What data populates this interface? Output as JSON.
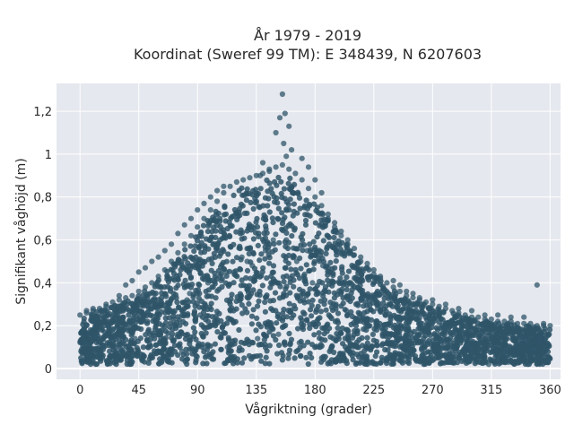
{
  "chart_data": {
    "type": "scatter",
    "title": "År 1979 - 2019",
    "subtitle": "Koordinat (Sweref 99 TM): E 348439, N 6207603",
    "xlabel": "Vågriktning (grader)",
    "ylabel": "Signifikant våghöjd (m)",
    "xlim": [
      -18,
      368
    ],
    "ylim": [
      -0.05,
      1.33
    ],
    "xticks": [
      0,
      45,
      90,
      135,
      180,
      225,
      270,
      315,
      360
    ],
    "xtick_labels": [
      "0",
      "45",
      "90",
      "135",
      "180",
      "225",
      "270",
      "315",
      "360"
    ],
    "yticks": [
      0,
      0.2,
      0.4,
      0.6,
      0.8,
      1,
      1.2
    ],
    "ytick_labels": [
      "0",
      "0,2",
      "0,4",
      "0,6",
      "0,8",
      "1",
      "1,2"
    ],
    "grid": true,
    "plot_bgcolor": "#e5e8ee",
    "marker_color": "#2f5569",
    "series": [
      {
        "name": "",
        "x": [
          0,
          5,
          10,
          15,
          20,
          25,
          30,
          35,
          40,
          45,
          50,
          55,
          60,
          65,
          70,
          75,
          80,
          85,
          90,
          95,
          100,
          105,
          110,
          115,
          120,
          125,
          130,
          135,
          140,
          145,
          150,
          155,
          160,
          165,
          170,
          175,
          180,
          185,
          190,
          195,
          200,
          205,
          210,
          215,
          220,
          225,
          230,
          235,
          240,
          245,
          250,
          255,
          260,
          265,
          270,
          275,
          280,
          285,
          290,
          295,
          300,
          305,
          310,
          315,
          320,
          325,
          330,
          335,
          340,
          345,
          350,
          355,
          360,
          155,
          157,
          153,
          160,
          150,
          156,
          162,
          158,
          170,
          145,
          140,
          138,
          110,
          105,
          100,
          95,
          90,
          85,
          80,
          75,
          70,
          65,
          60,
          55,
          50,
          45,
          40,
          35,
          30,
          20,
          10,
          5,
          175,
          180,
          185,
          190,
          195,
          200,
          205,
          210,
          215,
          220,
          225,
          230,
          240,
          245,
          250,
          255,
          260,
          270,
          280,
          290,
          300,
          310,
          320,
          330,
          340,
          350,
          355,
          3,
          12,
          18,
          25,
          33,
          42,
          48,
          58,
          66,
          73,
          82,
          92,
          102,
          108,
          118,
          124,
          132,
          142,
          148,
          166,
          172,
          178,
          188,
          196,
          204,
          212,
          222,
          232,
          238,
          248,
          258,
          266,
          276,
          286,
          296,
          306,
          316,
          326,
          336,
          346,
          356,
          2,
          15,
          28,
          41,
          57,
          64,
          78,
          88,
          97,
          113,
          127,
          136,
          152,
          168,
          183,
          192,
          207,
          218,
          235,
          252,
          268,
          283,
          298,
          313,
          328,
          343,
          358,
          8,
          22,
          38,
          52,
          68,
          84,
          98,
          112,
          128,
          144,
          158,
          174,
          186,
          202,
          216,
          228,
          244,
          262,
          278,
          292,
          308,
          322,
          338,
          352
        ],
        "y": [
          0.25,
          0.26,
          0.27,
          0.28,
          0.29,
          0.31,
          0.32,
          0.33,
          0.34,
          0.36,
          0.38,
          0.4,
          0.43,
          0.46,
          0.5,
          0.54,
          0.58,
          0.62,
          0.66,
          0.7,
          0.74,
          0.78,
          0.82,
          0.85,
          0.87,
          0.88,
          0.89,
          0.9,
          0.91,
          0.92,
          0.94,
          0.95,
          0.93,
          0.91,
          0.88,
          0.84,
          0.8,
          0.76,
          0.72,
          0.68,
          0.64,
          0.6,
          0.56,
          0.52,
          0.49,
          0.46,
          0.43,
          0.4,
          0.38,
          0.36,
          0.34,
          0.33,
          0.32,
          0.31,
          0.3,
          0.29,
          0.28,
          0.27,
          0.26,
          0.25,
          0.24,
          0.24,
          0.23,
          0.23,
          0.22,
          0.22,
          0.22,
          0.21,
          0.21,
          0.21,
          0.2,
          0.2,
          0.2,
          1.28,
          1.19,
          1.17,
          1.13,
          1.1,
          1.05,
          1.02,
          0.99,
          0.98,
          0.93,
          0.96,
          0.9,
          0.85,
          0.83,
          0.8,
          0.77,
          0.74,
          0.7,
          0.67,
          0.63,
          0.58,
          0.55,
          0.52,
          0.5,
          0.47,
          0.45,
          0.41,
          0.39,
          0.34,
          0.3,
          0.28,
          0.27,
          0.94,
          0.88,
          0.82,
          0.7,
          0.66,
          0.62,
          0.58,
          0.53,
          0.5,
          0.47,
          0.44,
          0.42,
          0.41,
          0.39,
          0.36,
          0.35,
          0.33,
          0.32,
          0.3,
          0.28,
          0.27,
          0.25,
          0.25,
          0.24,
          0.24,
          0.39,
          0.21,
          0.12,
          0.15,
          0.1,
          0.18,
          0.08,
          0.14,
          0.22,
          0.11,
          0.28,
          0.2,
          0.32,
          0.25,
          0.38,
          0.41,
          0.45,
          0.52,
          0.48,
          0.55,
          0.6,
          0.5,
          0.44,
          0.4,
          0.36,
          0.3,
          0.27,
          0.22,
          0.2,
          0.18,
          0.16,
          0.14,
          0.15,
          0.12,
          0.13,
          0.1,
          0.11,
          0.09,
          0.1,
          0.08,
          0.12,
          0.09,
          0.1,
          0.03,
          0.05,
          0.04,
          0.06,
          0.07,
          0.05,
          0.08,
          0.09,
          0.06,
          0.1,
          0.12,
          0.14,
          0.16,
          0.12,
          0.1,
          0.09,
          0.07,
          0.06,
          0.05,
          0.04,
          0.05,
          0.03,
          0.04,
          0.02,
          0.03,
          0.02,
          0.04,
          0.18,
          0.2,
          0.22,
          0.26,
          0.3,
          0.35,
          0.4,
          0.45,
          0.5,
          0.55,
          0.6,
          0.55,
          0.48,
          0.4,
          0.33,
          0.28,
          0.24,
          0.21,
          0.19,
          0.18,
          0.17,
          0.16,
          0.15,
          0.14
        ]
      }
    ]
  }
}
